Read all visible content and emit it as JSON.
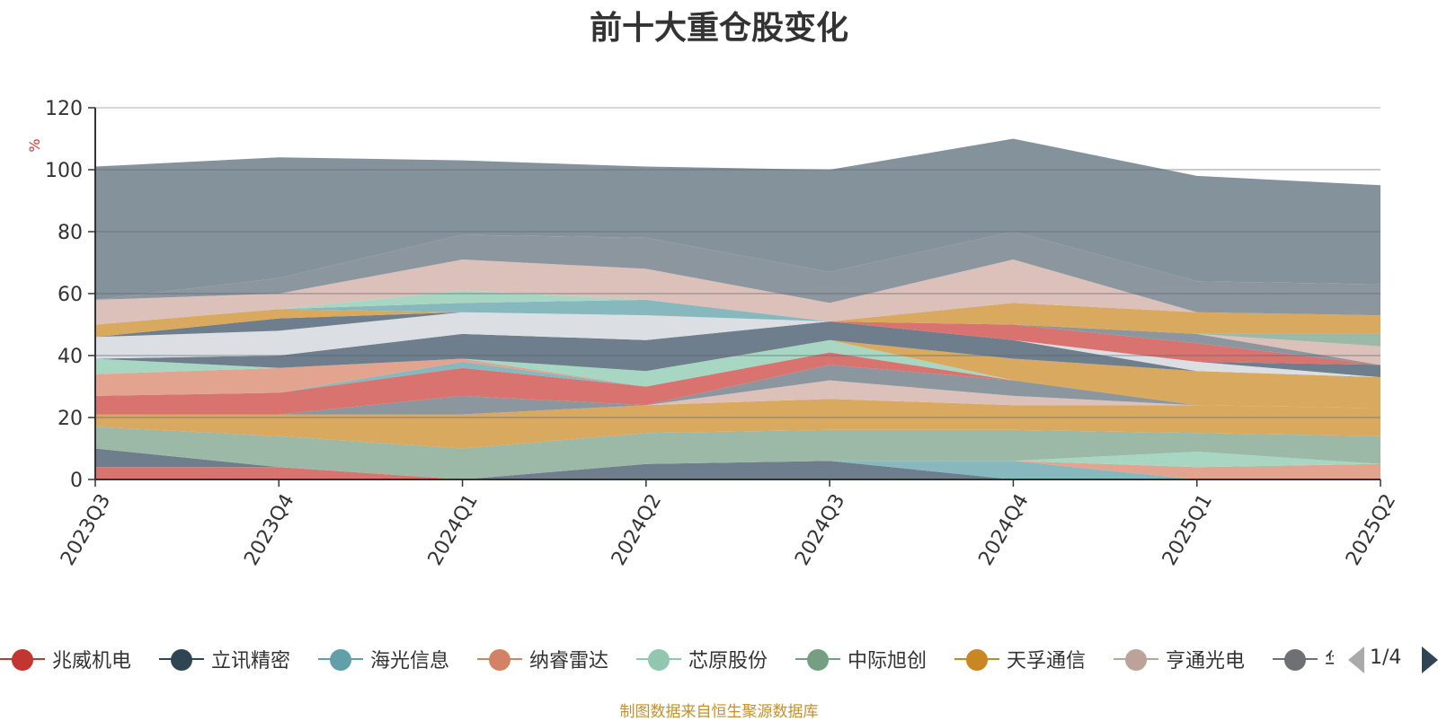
{
  "chart_data": {
    "type": "area",
    "stacked": true,
    "title": "前十大重仓股变化",
    "ylabel": "%",
    "ylim": [
      0,
      120
    ],
    "yticks": [
      0,
      20,
      40,
      60,
      80,
      100,
      120
    ],
    "categories": [
      "2023Q3",
      "2023Q4",
      "2024Q1",
      "2024Q2",
      "2024Q3",
      "2024Q4",
      "2025Q1",
      "2025Q2"
    ],
    "grid": true,
    "series": [
      {
        "name": "兆威机电",
        "color": "#d9736f",
        "values": [
          4,
          4,
          0,
          0,
          0,
          0,
          0,
          0
        ]
      },
      {
        "name": "立讯精密",
        "color": "#6e7e8c",
        "values": [
          6,
          0,
          0,
          5,
          6,
          0,
          0,
          0
        ]
      },
      {
        "name": "海光信息",
        "color": "#86b8bd",
        "values": [
          0,
          0,
          0,
          0,
          0,
          6,
          0,
          0
        ]
      },
      {
        "name": "纳睿雷达",
        "color": "#e2a48f",
        "values": [
          0,
          0,
          0,
          0,
          0,
          0,
          4,
          5
        ]
      },
      {
        "name": "芯原股份",
        "color": "#a7d6c2",
        "values": [
          0,
          0,
          0,
          0,
          0,
          0,
          5,
          0
        ]
      },
      {
        "name": "中际旭创",
        "color": "#9cb8a6",
        "values": [
          7,
          10,
          10,
          10,
          10,
          10,
          6,
          9
        ]
      },
      {
        "name": "天孚通信",
        "color": "#d8a95e",
        "values": [
          4,
          7,
          11,
          9,
          10,
          8,
          9,
          9
        ]
      },
      {
        "name": "亨通光电",
        "color": "#dcc1bb",
        "values": [
          0,
          0,
          0,
          0,
          6,
          3,
          0,
          0
        ]
      },
      {
        "name": "",
        "color": "#8c969e",
        "values": [
          0,
          0,
          6,
          0,
          5,
          5,
          0,
          0
        ]
      },
      {
        "name": "",
        "color": "#d9736f",
        "values": [
          6,
          7,
          9,
          6,
          4,
          0,
          0,
          0
        ]
      },
      {
        "name": "",
        "color": "#86b8bd",
        "values": [
          0,
          0,
          2,
          0,
          0,
          0,
          0,
          0
        ]
      },
      {
        "name": "",
        "color": "#e2a48f",
        "values": [
          7,
          8,
          1,
          0,
          0,
          0,
          0,
          0
        ]
      },
      {
        "name": "",
        "color": "#a7d6c2",
        "values": [
          5,
          0,
          0,
          5,
          4,
          0,
          0,
          0
        ]
      },
      {
        "name": "",
        "color": "#d8a95e",
        "values": [
          0,
          0,
          0,
          0,
          0,
          7,
          11,
          10
        ]
      },
      {
        "name": "",
        "color": "#6e7e8c",
        "values": [
          0,
          4,
          8,
          10,
          6,
          6,
          0,
          0
        ]
      },
      {
        "name": "",
        "color": "#dbdee3",
        "values": [
          7,
          8,
          7,
          8,
          0,
          0,
          3,
          0
        ]
      },
      {
        "name": "",
        "color": "#6e7e8c",
        "values": [
          0,
          4,
          0,
          0,
          0,
          0,
          0,
          4
        ]
      },
      {
        "name": "",
        "color": "#d9736f",
        "values": [
          0,
          0,
          0,
          0,
          0,
          5,
          6,
          0
        ]
      },
      {
        "name": "",
        "color": "#8c969e",
        "values": [
          0,
          0,
          0,
          0,
          0,
          0,
          3,
          0
        ]
      },
      {
        "name": "",
        "color": "#dcc1bb",
        "values": [
          0,
          0,
          0,
          0,
          0,
          0,
          0,
          6
        ]
      },
      {
        "name": "",
        "color": "#9cb8a6",
        "values": [
          0,
          0,
          0,
          0,
          0,
          0,
          0,
          4
        ]
      },
      {
        "name": "",
        "color": "#d8a95e",
        "values": [
          4,
          3,
          0,
          0,
          0,
          7,
          7,
          6
        ]
      },
      {
        "name": "",
        "color": "#86b8bd",
        "values": [
          0,
          0,
          3,
          5,
          0,
          0,
          0,
          0
        ]
      },
      {
        "name": "",
        "color": "#a7d6c2",
        "values": [
          0,
          0,
          4,
          0,
          0,
          0,
          0,
          0
        ]
      },
      {
        "name": "",
        "color": "#dcc1bb",
        "values": [
          8,
          5,
          10,
          10,
          6,
          14,
          0,
          0
        ]
      },
      {
        "name": "",
        "color": "#8c969e",
        "values": [
          0,
          5,
          8,
          10,
          10,
          9,
          10,
          10
        ]
      },
      {
        "name": "",
        "color": "#84939b",
        "values": [
          43,
          39,
          24,
          23,
          33,
          30,
          34,
          32
        ]
      }
    ]
  },
  "legend": {
    "items": [
      {
        "label": "兆威机电",
        "color": "#c23531"
      },
      {
        "label": "立讯精密",
        "color": "#2f4554"
      },
      {
        "label": "海光信息",
        "color": "#61a0a8"
      },
      {
        "label": "纳睿雷达",
        "color": "#d48265"
      },
      {
        "label": "芯原股份",
        "color": "#91c7ae"
      },
      {
        "label": "中际旭创",
        "color": "#749f83"
      },
      {
        "label": "天孚通信",
        "color": "#ca8622"
      },
      {
        "label": "亨通光电",
        "color": "#bda29a"
      },
      {
        "label": "华",
        "color": "#6e7074"
      }
    ],
    "pager": "1/4"
  },
  "source_note": "制图数据来自恒生聚源数据库"
}
